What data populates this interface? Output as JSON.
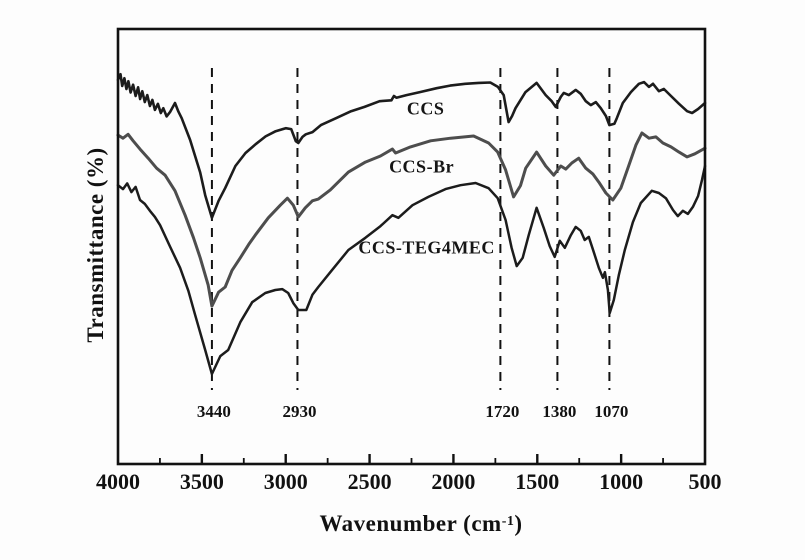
{
  "chart_data": {
    "type": "line",
    "title": "",
    "xlabel": "Wavenumber (cm-1)",
    "xlabel_parts": {
      "pre": "Wavenumber (cm",
      "sup": "-1",
      "post": ")"
    },
    "ylabel": "Transmittance (%)",
    "x_axis": {
      "min": 500,
      "max": 4000,
      "reversed": true,
      "major_ticks": [
        4000,
        3500,
        3000,
        2500,
        2000,
        1500,
        1000,
        500
      ],
      "minor_tick_step": 250,
      "tick_labels": [
        "4000",
        "3500",
        "3000",
        "2500",
        "2000",
        "1500",
        "1000",
        "500"
      ]
    },
    "y_axis": {
      "ticks_shown": false,
      "unit": "arbitrary transmittance (offset traces)"
    },
    "grid": false,
    "legend_position": "inline-labels",
    "annotations": {
      "peak_lines": [
        3440,
        2930,
        1720,
        1380,
        1070
      ],
      "peak_labels": [
        "3440",
        "2930",
        "1720",
        "1380",
        "1070"
      ],
      "line_style": "dashed"
    },
    "colors": {
      "black_trace": "#1c1c1c",
      "gray_trace": "#4d4d4d",
      "axis": "#111111"
    },
    "series": [
      {
        "name": "CCS",
        "color": "#1c1c1c",
        "stroke_width": 2.6,
        "label_pos": {
          "wn": 2166,
          "v": 81.8
        },
        "points": [
          [
            4000,
            88.3
          ],
          [
            3985,
            89.6
          ],
          [
            3975,
            86.9
          ],
          [
            3962,
            88.7
          ],
          [
            3950,
            86.2
          ],
          [
            3938,
            88.0
          ],
          [
            3925,
            85.4
          ],
          [
            3910,
            87.2
          ],
          [
            3895,
            84.6
          ],
          [
            3880,
            86.6
          ],
          [
            3868,
            83.9
          ],
          [
            3855,
            85.7
          ],
          [
            3840,
            83.2
          ],
          [
            3825,
            84.8
          ],
          [
            3810,
            82.3
          ],
          [
            3795,
            83.7
          ],
          [
            3780,
            81.4
          ],
          [
            3762,
            82.8
          ],
          [
            3745,
            80.7
          ],
          [
            3730,
            81.8
          ],
          [
            3710,
            79.9
          ],
          [
            3690,
            80.9
          ],
          [
            3660,
            83.0
          ],
          [
            3640,
            81.0
          ],
          [
            3620,
            79.5
          ],
          [
            3570,
            74.5
          ],
          [
            3510,
            67.0
          ],
          [
            3480,
            61.8
          ],
          [
            3440,
            56.6
          ],
          [
            3400,
            60.5
          ],
          [
            3360,
            63.5
          ],
          [
            3300,
            68.5
          ],
          [
            3240,
            71.5
          ],
          [
            3180,
            73.5
          ],
          [
            3120,
            75.3
          ],
          [
            3060,
            76.5
          ],
          [
            3000,
            77.2
          ],
          [
            2967,
            77.0
          ],
          [
            2940,
            74.2
          ],
          [
            2925,
            73.8
          ],
          [
            2900,
            75.2
          ],
          [
            2880,
            75.8
          ],
          [
            2840,
            76.3
          ],
          [
            2790,
            77.9
          ],
          [
            2700,
            79.5
          ],
          [
            2610,
            81.1
          ],
          [
            2530,
            82.1
          ],
          [
            2440,
            83.4
          ],
          [
            2370,
            83.6
          ],
          [
            2355,
            84.6
          ],
          [
            2340,
            84.2
          ],
          [
            2280,
            84.8
          ],
          [
            2200,
            85.5
          ],
          [
            2100,
            86.4
          ],
          [
            2020,
            87.0
          ],
          [
            1930,
            87.4
          ],
          [
            1850,
            87.6
          ],
          [
            1780,
            87.7
          ],
          [
            1735,
            86.7
          ],
          [
            1700,
            84.8
          ],
          [
            1671,
            78.6
          ],
          [
            1650,
            80.0
          ],
          [
            1630,
            81.8
          ],
          [
            1570,
            85.5
          ],
          [
            1504,
            87.6
          ],
          [
            1450,
            84.8
          ],
          [
            1414,
            83.4
          ],
          [
            1390,
            82.1
          ],
          [
            1360,
            84.4
          ],
          [
            1342,
            85.3
          ],
          [
            1312,
            84.8
          ],
          [
            1271,
            86.0
          ],
          [
            1241,
            85.1
          ],
          [
            1211,
            83.4
          ],
          [
            1181,
            82.5
          ],
          [
            1151,
            83.2
          ],
          [
            1121,
            81.8
          ],
          [
            1091,
            80.0
          ],
          [
            1070,
            77.9
          ],
          [
            1040,
            78.2
          ],
          [
            1026,
            79.5
          ],
          [
            990,
            83.0
          ],
          [
            942,
            85.5
          ],
          [
            894,
            87.4
          ],
          [
            864,
            87.8
          ],
          [
            834,
            86.7
          ],
          [
            810,
            87.4
          ],
          [
            775,
            85.7
          ],
          [
            745,
            86.2
          ],
          [
            703,
            84.6
          ],
          [
            655,
            82.8
          ],
          [
            607,
            81.1
          ],
          [
            577,
            80.7
          ],
          [
            541,
            81.6
          ],
          [
            500,
            83.0
          ]
        ]
      },
      {
        "name": "CCS-Br",
        "color": "#4d4d4d",
        "stroke_width": 3.0,
        "label_pos": {
          "wn": 2190,
          "v": 68.5
        },
        "points": [
          [
            4000,
            75.6
          ],
          [
            3970,
            74.9
          ],
          [
            3940,
            75.8
          ],
          [
            3910,
            74.3
          ],
          [
            3869,
            72.4
          ],
          [
            3820,
            70.3
          ],
          [
            3770,
            68.0
          ],
          [
            3719,
            66.4
          ],
          [
            3660,
            62.8
          ],
          [
            3600,
            57.2
          ],
          [
            3550,
            52.0
          ],
          [
            3510,
            47.4
          ],
          [
            3462,
            41.1
          ],
          [
            3440,
            36.3
          ],
          [
            3400,
            39.5
          ],
          [
            3361,
            40.7
          ],
          [
            3320,
            44.5
          ],
          [
            3271,
            47.4
          ],
          [
            3220,
            50.5
          ],
          [
            3182,
            52.6
          ],
          [
            3104,
            56.6
          ],
          [
            3032,
            59.5
          ],
          [
            2990,
            61.1
          ],
          [
            2955,
            59.5
          ],
          [
            2925,
            56.8
          ],
          [
            2883,
            58.9
          ],
          [
            2841,
            60.5
          ],
          [
            2806,
            60.9
          ],
          [
            2734,
            63.0
          ],
          [
            2626,
            67.1
          ],
          [
            2525,
            69.4
          ],
          [
            2435,
            70.8
          ],
          [
            2364,
            72.4
          ],
          [
            2345,
            71.5
          ],
          [
            2256,
            72.9
          ],
          [
            2136,
            74.3
          ],
          [
            2017,
            74.9
          ],
          [
            1880,
            75.4
          ],
          [
            1790,
            73.8
          ],
          [
            1736,
            71.7
          ],
          [
            1689,
            67.6
          ],
          [
            1641,
            61.4
          ],
          [
            1600,
            64.0
          ],
          [
            1569,
            68.0
          ],
          [
            1504,
            71.7
          ],
          [
            1450,
            68.5
          ],
          [
            1402,
            66.4
          ],
          [
            1360,
            68.5
          ],
          [
            1330,
            67.8
          ],
          [
            1294,
            69.2
          ],
          [
            1253,
            70.3
          ],
          [
            1211,
            68.0
          ],
          [
            1169,
            66.7
          ],
          [
            1133,
            64.8
          ],
          [
            1091,
            62.3
          ],
          [
            1050,
            60.7
          ],
          [
            1002,
            63.4
          ],
          [
            954,
            68.7
          ],
          [
            912,
            73.3
          ],
          [
            876,
            76.1
          ],
          [
            834,
            74.9
          ],
          [
            793,
            75.2
          ],
          [
            751,
            73.8
          ],
          [
            703,
            72.9
          ],
          [
            655,
            71.7
          ],
          [
            607,
            70.6
          ],
          [
            560,
            71.3
          ],
          [
            500,
            72.6
          ]
        ]
      },
      {
        "name": "CCS-TEG4MEC",
        "color": "#1c1c1c",
        "stroke_width": 2.5,
        "label_pos": {
          "wn": 2160,
          "v": 49.9
        },
        "points": [
          [
            4000,
            64.1
          ],
          [
            3970,
            63.2
          ],
          [
            3945,
            64.5
          ],
          [
            3920,
            62.5
          ],
          [
            3895,
            63.7
          ],
          [
            3869,
            60.7
          ],
          [
            3840,
            59.8
          ],
          [
            3810,
            58.2
          ],
          [
            3780,
            56.8
          ],
          [
            3749,
            54.9
          ],
          [
            3690,
            50.0
          ],
          [
            3630,
            45.1
          ],
          [
            3580,
            39.8
          ],
          [
            3540,
            34.3
          ],
          [
            3480,
            26.2
          ],
          [
            3440,
            20.7
          ],
          [
            3390,
            24.8
          ],
          [
            3343,
            26.2
          ],
          [
            3271,
            32.6
          ],
          [
            3200,
            37.2
          ],
          [
            3122,
            39.3
          ],
          [
            3062,
            40.0
          ],
          [
            3021,
            40.2
          ],
          [
            2985,
            39.3
          ],
          [
            2955,
            37.0
          ],
          [
            2925,
            35.4
          ],
          [
            2877,
            35.4
          ],
          [
            2841,
            38.9
          ],
          [
            2806,
            40.7
          ],
          [
            2734,
            44.1
          ],
          [
            2626,
            49.2
          ],
          [
            2525,
            52.0
          ],
          [
            2435,
            54.7
          ],
          [
            2364,
            57.2
          ],
          [
            2328,
            56.6
          ],
          [
            2244,
            59.5
          ],
          [
            2149,
            61.4
          ],
          [
            2047,
            63.2
          ],
          [
            1958,
            64.1
          ],
          [
            1868,
            64.6
          ],
          [
            1790,
            63.4
          ],
          [
            1736,
            61.1
          ],
          [
            1689,
            56.1
          ],
          [
            1653,
            49.7
          ],
          [
            1623,
            45.5
          ],
          [
            1587,
            47.4
          ],
          [
            1551,
            52.6
          ],
          [
            1504,
            58.9
          ],
          [
            1462,
            54.3
          ],
          [
            1426,
            50.1
          ],
          [
            1396,
            47.6
          ],
          [
            1366,
            51.3
          ],
          [
            1336,
            49.7
          ],
          [
            1300,
            52.6
          ],
          [
            1271,
            54.5
          ],
          [
            1241,
            53.6
          ],
          [
            1217,
            51.5
          ],
          [
            1193,
            52.2
          ],
          [
            1163,
            48.7
          ],
          [
            1133,
            45.1
          ],
          [
            1109,
            42.8
          ],
          [
            1097,
            44.1
          ],
          [
            1079,
            40.0
          ],
          [
            1068,
            34.7
          ],
          [
            1044,
            37.7
          ],
          [
            1014,
            43.4
          ],
          [
            978,
            49.2
          ],
          [
            930,
            55.6
          ],
          [
            883,
            60.0
          ],
          [
            817,
            62.8
          ],
          [
            775,
            62.3
          ],
          [
            733,
            61.1
          ],
          [
            691,
            58.4
          ],
          [
            662,
            57.0
          ],
          [
            632,
            58.2
          ],
          [
            602,
            57.5
          ],
          [
            572,
            59.1
          ],
          [
            541,
            61.6
          ],
          [
            518,
            65.3
          ],
          [
            500,
            68.5
          ]
        ]
      }
    ]
  }
}
